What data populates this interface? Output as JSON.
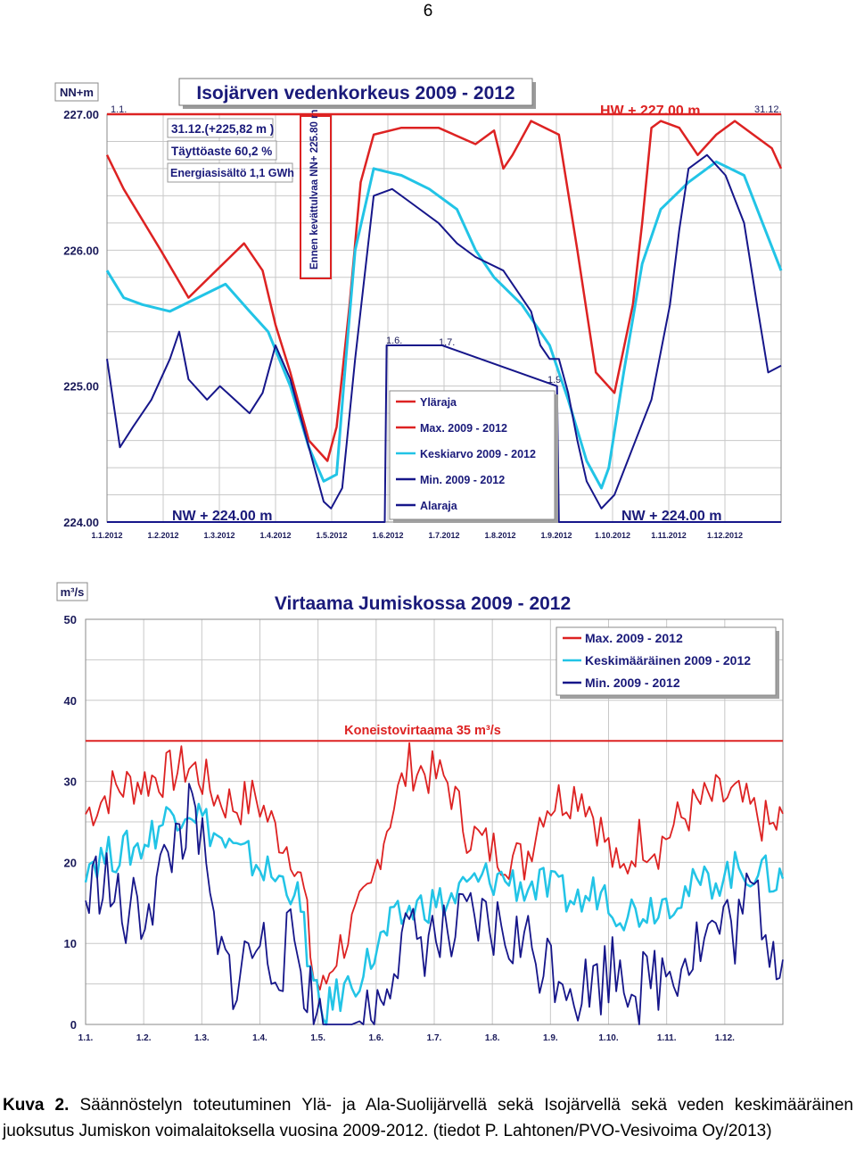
{
  "page_number": "6",
  "caption": {
    "label": "Kuva 2.",
    "text": "Säännöstelyn toteutuminen Ylä- ja Ala-Suolijärvellä sekä Isojärvellä sekä veden keskimääräinen juoksutus Jumiskon voimalaitoksella vuosina 2009-2012. (tiedot P. Lahtonen/PVO-Vesivoima Oy/2013)"
  },
  "colors": {
    "red": "#dd2222",
    "cyan": "#22c4e6",
    "navy": "#16168a",
    "grid": "#c8c8c8",
    "frame": "#8a8a8a"
  },
  "chart_data": [
    {
      "type": "line",
      "title": "Isojärven vedenkorkeus 2009 - 2012",
      "y_unit": "NN+m",
      "ylim": [
        224.0,
        227.0
      ],
      "yticks": [
        "224.00",
        "225.00",
        "226.00",
        "227.00"
      ],
      "xticks": [
        "1.1.2012",
        "1.2.2012",
        "1.3.2012",
        "1.4.2012",
        "1.5.2012",
        "1.6.2012",
        "1.7.2012",
        "1.8.2012",
        "1.9.2012",
        "1.10.2012",
        "1.11.2012",
        "1.12.2012"
      ],
      "grid": true,
      "legend_position": "bottom-center",
      "annotations": {
        "hw": "HW + 227.00 m",
        "nw_left": "NW + 224.00 m",
        "nw_right": "NW + 224.00 m",
        "start": "1.1.",
        "end": "31.12.",
        "info_1": "31.12.(+225,82 m )",
        "info_2": "Täyttöaste 60,2 %",
        "info_3": "Energiasisältö 1,1 GWh",
        "spring_limit": "Ennen kevättulvaa NN+ 225.80 m",
        "mark_16": "1.6.",
        "mark_17": "1.7.",
        "mark_19": "1.9."
      },
      "series": [
        {
          "name": "Yläraja",
          "color": "#dd2222",
          "style": "solid",
          "x": [
            1,
            365
          ],
          "values": [
            227.0,
            227.0
          ]
        },
        {
          "name": "Max. 2009 - 2012",
          "color": "#dd2222",
          "style": "solid",
          "x": [
            1,
            10,
            30,
            45,
            60,
            75,
            85,
            92,
            100,
            110,
            120,
            125,
            132,
            138,
            145,
            160,
            180,
            200,
            210,
            215,
            220,
            230,
            245,
            255,
            265,
            275,
            285,
            290,
            295,
            300,
            310,
            320,
            330,
            340,
            350,
            360,
            365
          ],
          "values": [
            226.7,
            226.45,
            226.0,
            225.65,
            225.85,
            226.05,
            225.85,
            225.45,
            225.1,
            224.6,
            224.45,
            224.7,
            225.6,
            226.5,
            226.85,
            226.9,
            226.9,
            226.78,
            226.88,
            226.6,
            226.7,
            226.95,
            226.85,
            226.0,
            225.1,
            224.95,
            225.6,
            226.2,
            226.9,
            226.95,
            226.9,
            226.7,
            226.85,
            226.95,
            226.85,
            226.75,
            226.6
          ]
        },
        {
          "name": "Keskiarvo 2009 - 2012",
          "color": "#22c4e6",
          "style": "solid",
          "x": [
            1,
            10,
            20,
            35,
            50,
            65,
            78,
            88,
            100,
            110,
            118,
            125,
            130,
            135,
            145,
            160,
            175,
            190,
            200,
            210,
            225,
            240,
            250,
            260,
            268,
            272,
            280,
            290,
            300,
            315,
            330,
            345,
            355,
            365
          ],
          "values": [
            225.85,
            225.65,
            225.6,
            225.55,
            225.65,
            225.75,
            225.55,
            225.4,
            225.0,
            224.55,
            224.3,
            224.35,
            225.2,
            226.0,
            226.6,
            226.55,
            226.45,
            226.3,
            226.0,
            225.8,
            225.6,
            225.3,
            224.9,
            224.45,
            224.25,
            224.4,
            225.1,
            225.9,
            226.3,
            226.5,
            226.65,
            226.55,
            226.2,
            225.85
          ]
        },
        {
          "name": "Min. 2009 - 2012",
          "color": "#16168a",
          "style": "solid",
          "x": [
            1,
            8,
            15,
            25,
            35,
            40,
            45,
            55,
            62,
            70,
            78,
            85,
            92,
            100,
            110,
            118,
            122,
            128,
            135,
            145,
            155,
            165,
            180,
            190,
            200,
            215,
            230,
            235,
            240,
            245,
            250,
            255,
            260,
            268,
            275,
            285,
            295,
            305,
            310,
            315,
            325,
            335,
            345,
            352,
            358,
            365
          ],
          "values": [
            225.2,
            224.55,
            224.7,
            224.9,
            225.2,
            225.4,
            225.05,
            224.9,
            225.0,
            224.9,
            224.8,
            224.95,
            225.3,
            225.05,
            224.55,
            224.15,
            224.1,
            224.25,
            225.2,
            226.4,
            226.45,
            226.35,
            226.2,
            226.05,
            225.95,
            225.85,
            225.55,
            225.3,
            225.2,
            225.2,
            224.95,
            224.6,
            224.3,
            224.1,
            224.2,
            224.55,
            224.9,
            225.6,
            226.15,
            226.6,
            226.7,
            226.55,
            226.2,
            225.6,
            225.1,
            225.15
          ]
        },
        {
          "name": "Alaraja",
          "color": "#16168a",
          "style": "solid",
          "x": [
            1,
            151,
            152,
            182,
            244,
            245,
            365
          ],
          "values": [
            224.0,
            224.0,
            225.3,
            225.3,
            225.0,
            224.0,
            224.0
          ]
        }
      ]
    },
    {
      "type": "line",
      "title": "Virtaama Jumiskossa 2009 - 2012",
      "y_unit": "m³/s",
      "ylim": [
        0,
        50
      ],
      "yticks": [
        "0",
        "10",
        "20",
        "30",
        "40",
        "50"
      ],
      "xticks": [
        "1.1.",
        "1.2.",
        "1.3.",
        "1.4.",
        "1.5.",
        "1.6.",
        "1.7.",
        "1.8.",
        "1.9.",
        "1.10.",
        "1.11.",
        "1.12."
      ],
      "grid": true,
      "legend_position": "top-right",
      "reference_line": {
        "label": "Koneistovirtaama 35 m³/s",
        "value": 35
      },
      "series": [
        {
          "name": "Max. 2009 - 2012",
          "color": "#dd2222",
          "x": [
            1,
            15,
            30,
            45,
            55,
            60,
            70,
            80,
            90,
            100,
            110,
            115,
            120,
            125,
            130,
            140,
            150,
            155,
            160,
            170,
            180,
            190,
            200,
            210,
            220,
            230,
            240,
            250,
            260,
            270,
            280,
            290,
            300,
            310,
            320,
            330,
            340,
            350,
            360,
            365
          ],
          "values": [
            26,
            29,
            30,
            31,
            32,
            31,
            28,
            27,
            28,
            24,
            21,
            16,
            6,
            4,
            8,
            12,
            16,
            22,
            26,
            32,
            31,
            30,
            24,
            22,
            21,
            20,
            27,
            28,
            29,
            24,
            18,
            23,
            22,
            25,
            27,
            28,
            28,
            26,
            24,
            26
          ]
        },
        {
          "name": "Keskimääräinen 2009 - 2012",
          "color": "#22c4e6",
          "x": [
            1,
            15,
            30,
            45,
            55,
            60,
            70,
            80,
            90,
            100,
            110,
            115,
            120,
            125,
            130,
            140,
            150,
            155,
            160,
            170,
            180,
            190,
            200,
            210,
            220,
            230,
            240,
            250,
            260,
            270,
            280,
            290,
            300,
            310,
            320,
            330,
            340,
            350,
            360,
            365
          ],
          "values": [
            20,
            21,
            22,
            26,
            27,
            26,
            23,
            21,
            20,
            18,
            17,
            12,
            4,
            1,
            3,
            5,
            8,
            10,
            12,
            14,
            15,
            15,
            17,
            18,
            18,
            17,
            17,
            16,
            15,
            17,
            14,
            14,
            15,
            16,
            17,
            18,
            19,
            19,
            18,
            18
          ]
        },
        {
          "name": "Min. 2009 - 2012",
          "color": "#16168a",
          "x": [
            1,
            10,
            20,
            30,
            40,
            50,
            55,
            60,
            70,
            80,
            90,
            100,
            110,
            115,
            120,
            125,
            130,
            140,
            150,
            155,
            160,
            170,
            180,
            190,
            200,
            210,
            220,
            230,
            240,
            250,
            260,
            270,
            280,
            290,
            300,
            310,
            320,
            330,
            340,
            350,
            360,
            365
          ],
          "values": [
            15,
            19,
            13,
            14,
            18,
            24,
            25,
            24,
            8,
            6,
            10,
            8,
            10,
            6,
            2,
            0,
            0,
            0,
            1,
            4,
            8,
            10,
            11,
            10,
            12,
            12,
            11,
            10,
            8,
            7,
            4,
            6,
            8,
            4,
            6,
            8,
            10,
            12,
            12,
            16,
            10,
            8
          ]
        }
      ]
    }
  ]
}
